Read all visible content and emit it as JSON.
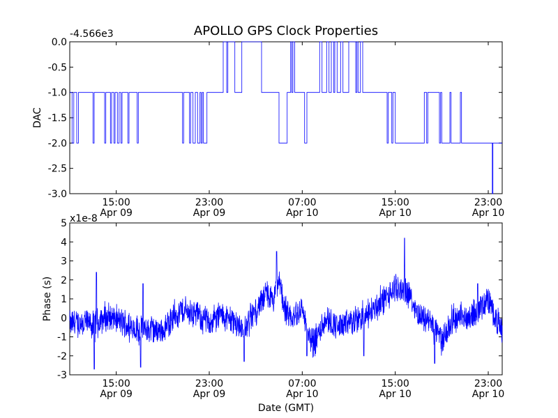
{
  "figure": {
    "title": "APOLLO GPS Clock Properties"
  },
  "chart_data": [
    {
      "type": "line",
      "name": "dac-panel",
      "ylabel": "DAC",
      "xlabel": "",
      "y_offset_text": "-4.566e3",
      "ylim": [
        -3.0,
        0.0
      ],
      "yticks": [
        "0.0",
        "-0.5",
        "-1.0",
        "-1.5",
        "-2.0",
        "-2.5",
        "-3.0"
      ],
      "ytick_values": [
        0.0,
        -0.5,
        -1.0,
        -1.5,
        -2.0,
        -2.5,
        -3.0
      ],
      "xlim_hours": [
        11.0,
        48.2
      ],
      "xticks": [
        {
          "hour": 15,
          "time": "15:00",
          "date": "Apr 09"
        },
        {
          "hour": 23,
          "time": "23:00",
          "date": "Apr 09"
        },
        {
          "hour": 31,
          "time": "07:00",
          "date": "Apr 10"
        },
        {
          "hour": 39,
          "time": "15:00",
          "date": "Apr 10"
        },
        {
          "hour": 47,
          "time": "23:00",
          "date": "Apr 10"
        }
      ],
      "color": "#0000ff",
      "step_segments": [
        [
          11.0,
          -1
        ],
        [
          11.2,
          -2
        ],
        [
          11.35,
          -1
        ],
        [
          11.6,
          -2
        ],
        [
          11.75,
          -1
        ],
        [
          12.0,
          -1
        ],
        [
          12.4,
          -1
        ],
        [
          12.6,
          -1
        ],
        [
          12.9,
          -1
        ],
        [
          13.0,
          -2
        ],
        [
          13.1,
          -1
        ],
        [
          13.5,
          -1
        ],
        [
          13.8,
          -1
        ],
        [
          14.0,
          -2
        ],
        [
          14.1,
          -1
        ],
        [
          14.3,
          -1
        ],
        [
          14.5,
          -2
        ],
        [
          14.6,
          -1
        ],
        [
          14.8,
          -2
        ],
        [
          14.9,
          -1
        ],
        [
          15.1,
          -2
        ],
        [
          15.25,
          -1
        ],
        [
          15.4,
          -2
        ],
        [
          15.5,
          -1
        ],
        [
          16.0,
          -2
        ],
        [
          16.1,
          -1
        ],
        [
          16.4,
          -1
        ],
        [
          16.8,
          -2
        ],
        [
          16.9,
          -1
        ],
        [
          17.3,
          -1
        ],
        [
          17.8,
          -1
        ],
        [
          19.0,
          -1
        ],
        [
          19.5,
          -1
        ],
        [
          20.0,
          -1
        ],
        [
          20.7,
          -2
        ],
        [
          20.8,
          -1
        ],
        [
          21.0,
          -1
        ],
        [
          21.3,
          -2
        ],
        [
          21.4,
          -1
        ],
        [
          21.6,
          -2
        ],
        [
          21.8,
          -1
        ],
        [
          22.0,
          -2
        ],
        [
          22.2,
          -1
        ],
        [
          22.3,
          -2
        ],
        [
          22.4,
          -1
        ],
        [
          22.5,
          -2
        ],
        [
          22.7,
          -2
        ],
        [
          22.8,
          -1
        ],
        [
          23.0,
          -1
        ],
        [
          23.2,
          -1
        ],
        [
          23.6,
          -1
        ],
        [
          24.0,
          -1
        ],
        [
          24.2,
          0
        ],
        [
          24.5,
          -1
        ],
        [
          24.6,
          0
        ],
        [
          25.0,
          0
        ],
        [
          25.2,
          -1
        ],
        [
          25.4,
          -1
        ],
        [
          25.8,
          0
        ],
        [
          26.0,
          0
        ],
        [
          26.2,
          0
        ],
        [
          26.5,
          0
        ],
        [
          27.0,
          0
        ],
        [
          27.5,
          -1
        ],
        [
          28.0,
          -1
        ],
        [
          28.8,
          -1
        ],
        [
          29.0,
          -2
        ],
        [
          29.5,
          -2
        ],
        [
          29.7,
          -1
        ],
        [
          29.9,
          -1
        ],
        [
          30.0,
          0
        ],
        [
          30.1,
          -1
        ],
        [
          30.2,
          0
        ],
        [
          30.35,
          -1
        ],
        [
          31.0,
          -1
        ],
        [
          31.2,
          -2
        ],
        [
          31.4,
          -1
        ],
        [
          31.6,
          -1
        ],
        [
          32.0,
          -1
        ],
        [
          32.5,
          0
        ],
        [
          32.7,
          -1
        ],
        [
          33.0,
          -1
        ],
        [
          33.1,
          0
        ],
        [
          33.3,
          -1
        ],
        [
          33.5,
          0
        ],
        [
          33.7,
          -1
        ],
        [
          33.8,
          0
        ],
        [
          34.0,
          -1
        ],
        [
          34.3,
          0
        ],
        [
          34.5,
          -1
        ],
        [
          35.0,
          0
        ],
        [
          35.3,
          0
        ],
        [
          35.5,
          0
        ],
        [
          35.6,
          -1
        ],
        [
          35.7,
          0
        ],
        [
          35.8,
          -1
        ],
        [
          36.0,
          0
        ],
        [
          36.2,
          -1
        ],
        [
          38.0,
          -1
        ],
        [
          38.3,
          -2
        ],
        [
          38.4,
          -1
        ],
        [
          38.6,
          -1
        ],
        [
          38.7,
          -2
        ],
        [
          38.8,
          -1
        ],
        [
          39.0,
          -2
        ],
        [
          40.0,
          -2
        ],
        [
          41.0,
          -2
        ],
        [
          41.5,
          -1
        ],
        [
          41.7,
          -2
        ],
        [
          41.8,
          -1
        ],
        [
          42.0,
          -1
        ],
        [
          42.8,
          -2
        ],
        [
          42.9,
          -1
        ],
        [
          43.0,
          -2
        ],
        [
          43.4,
          -2
        ],
        [
          43.6,
          -2
        ],
        [
          43.7,
          -1
        ],
        [
          43.8,
          -2
        ],
        [
          44.5,
          -2
        ],
        [
          44.6,
          -1
        ],
        [
          44.7,
          -2
        ],
        [
          45.0,
          -2
        ],
        [
          45.5,
          -2
        ],
        [
          46.0,
          -2
        ],
        [
          46.5,
          -2
        ],
        [
          47.0,
          -2
        ],
        [
          47.2,
          -2
        ],
        [
          47.35,
          -3
        ],
        [
          47.4,
          -2
        ],
        [
          48.2,
          -2
        ]
      ]
    },
    {
      "type": "line",
      "name": "phase-panel",
      "ylabel": "Phase (s)",
      "xlabel": "Date (GMT)",
      "y_offset_text": "x1e-8",
      "ylim": [
        -3,
        5
      ],
      "yticks": [
        "5",
        "4",
        "3",
        "2",
        "1",
        "0",
        "-1",
        "-2",
        "-3"
      ],
      "ytick_values": [
        5,
        4,
        3,
        2,
        1,
        0,
        -1,
        -2,
        -3
      ],
      "xlim_hours": [
        11.0,
        48.2
      ],
      "xticks": [
        {
          "hour": 15,
          "time": "15:00",
          "date": "Apr 09"
        },
        {
          "hour": 23,
          "time": "23:00",
          "date": "Apr 09"
        },
        {
          "hour": 31,
          "time": "07:00",
          "date": "Apr 10"
        },
        {
          "hour": 39,
          "time": "15:00",
          "date": "Apr 10"
        },
        {
          "hour": 47,
          "time": "23:00",
          "date": "Apr 10"
        }
      ],
      "color": "#0000ff",
      "trend_hours": [
        11.0,
        12.0,
        13.0,
        14.0,
        15.0,
        16.0,
        17.0,
        18.0,
        19.0,
        20.0,
        21.0,
        22.0,
        23.0,
        24.0,
        25.0,
        26.0,
        27.0,
        28.0,
        28.5,
        29.0,
        29.5,
        30.0,
        31.0,
        31.5,
        32.0,
        33.0,
        34.0,
        35.0,
        36.0,
        37.0,
        38.0,
        39.0,
        40.0,
        41.0,
        42.0,
        43.0,
        44.0,
        45.0,
        46.0,
        47.0,
        48.2
      ],
      "trend_values": [
        -0.3,
        -0.2,
        -0.4,
        0.0,
        -0.1,
        -0.4,
        -0.7,
        -0.6,
        -0.7,
        0.2,
        0.4,
        0.2,
        -0.3,
        0.2,
        -0.2,
        -0.6,
        0.4,
        1.3,
        0.8,
        2.0,
        0.5,
        -0.2,
        0.6,
        -1.0,
        -1.3,
        0.0,
        -0.5,
        -0.3,
        0.0,
        0.4,
        0.9,
        1.5,
        1.5,
        0.2,
        -0.2,
        -1.2,
        0.0,
        0.0,
        0.3,
        1.0,
        -0.8
      ],
      "spikes": [
        {
          "hour": 11.8,
          "value": -0.7
        },
        {
          "hour": 13.3,
          "value": 2.4
        },
        {
          "hour": 13.1,
          "value": -2.7
        },
        {
          "hour": 17.1,
          "value": -2.6
        },
        {
          "hour": 17.3,
          "value": 1.8
        },
        {
          "hour": 28.8,
          "value": 3.5
        },
        {
          "hour": 31.4,
          "value": -2.0
        },
        {
          "hour": 36.3,
          "value": -2.0
        },
        {
          "hour": 39.8,
          "value": 4.2
        },
        {
          "hour": 42.4,
          "value": -2.4
        },
        {
          "hour": 46.1,
          "value": 1.8
        },
        {
          "hour": 26.0,
          "value": -2.3
        }
      ]
    }
  ]
}
